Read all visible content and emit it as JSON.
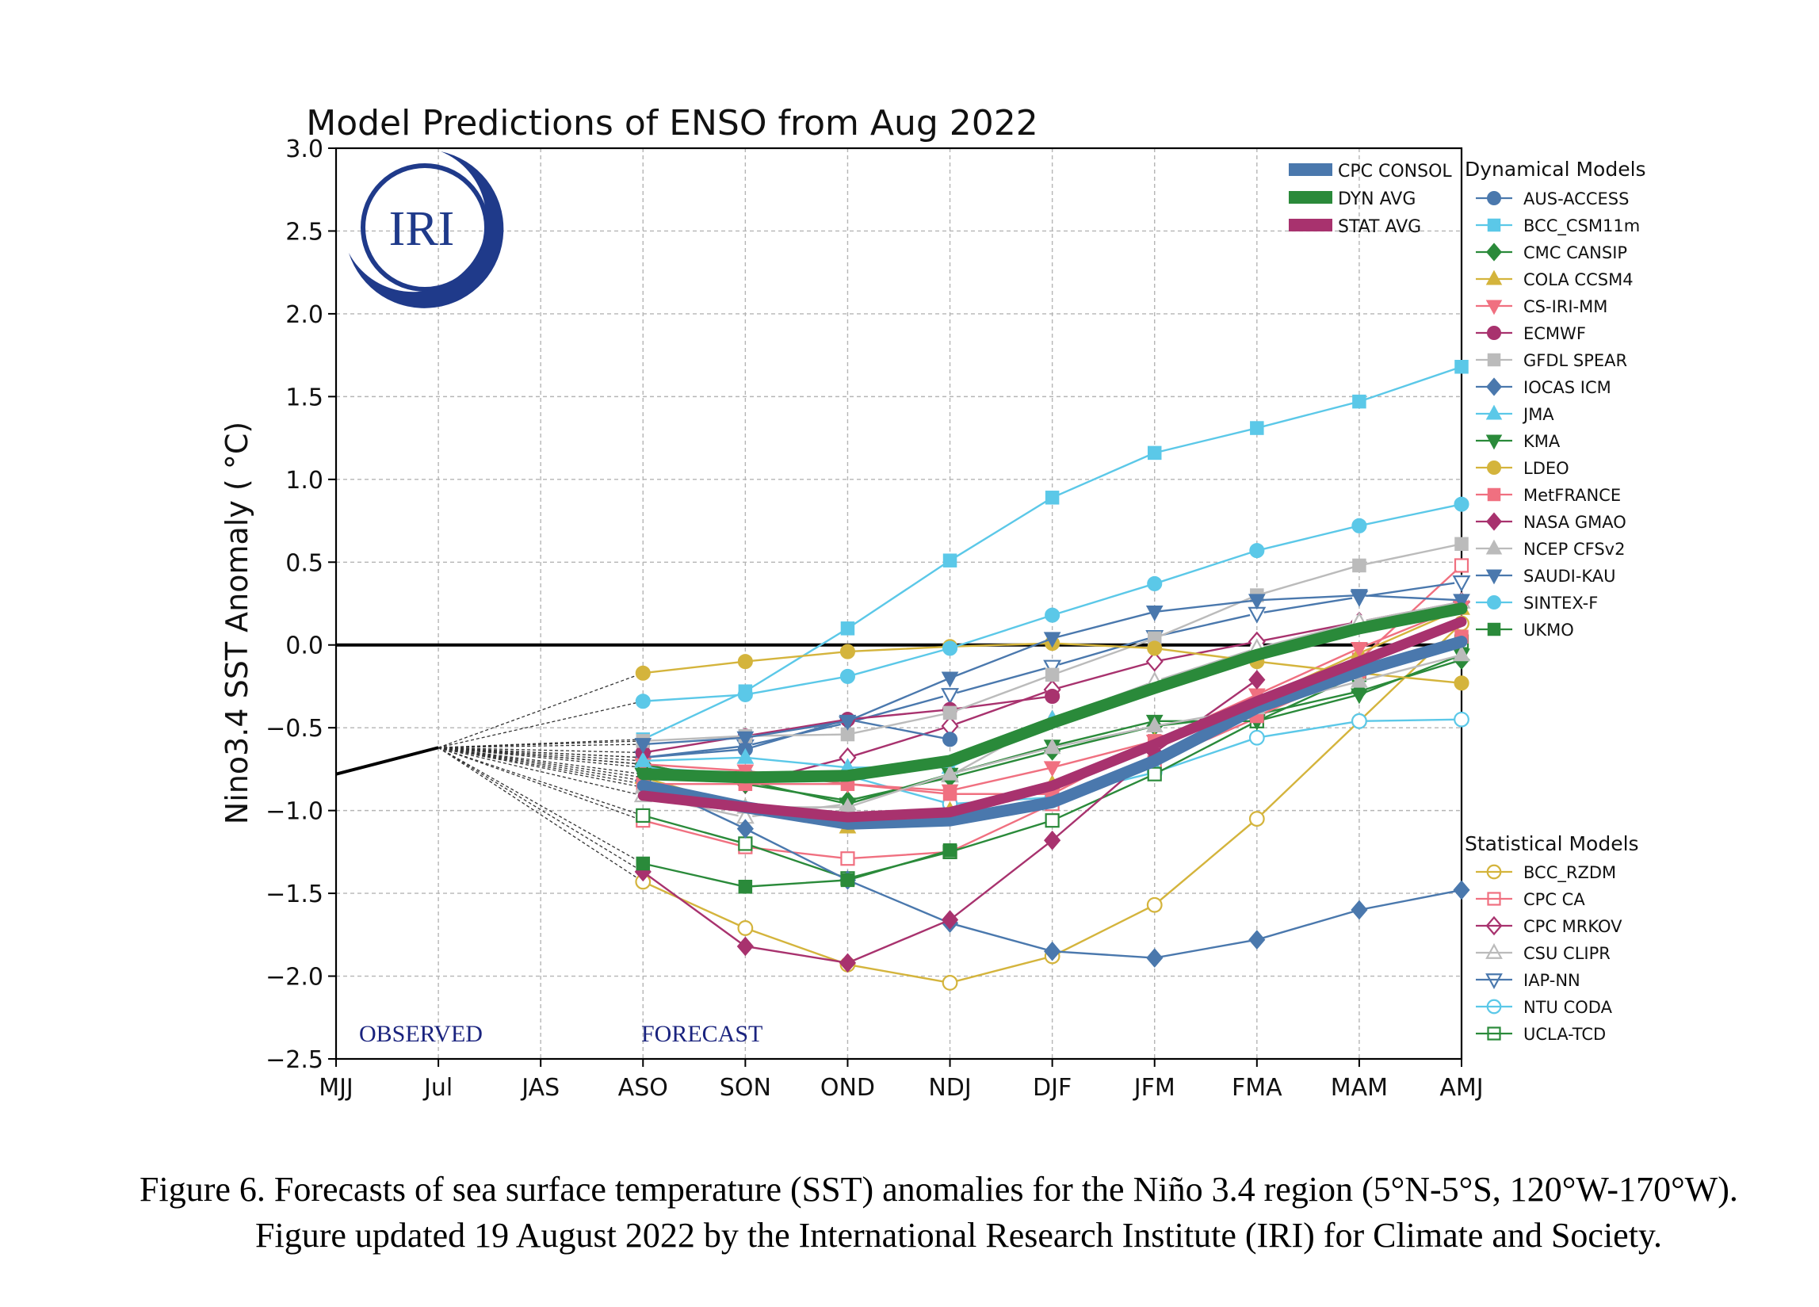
{
  "caption": "Figure 6. Forecasts of sea surface temperature (SST) anomalies for the Niño 3.4 region (5°N-5°S, 120°W-170°W). Figure updated 19 August 2022 by the International Research Institute (IRI) for Climate and Society.",
  "logo": {
    "text": "IRI",
    "color": "#1f3a8a"
  },
  "chart_data": {
    "type": "line",
    "title": "Model Predictions of ENSO from Aug 2022",
    "ylabel": "Nino3.4 SST Anomaly ($^\\circ$C)",
    "ylabel_display": "Nino3.4 SST Anomaly ( °C)",
    "xlabel": "",
    "categories": [
      "MJJ",
      "Jul",
      "JAS",
      "ASO",
      "SON",
      "OND",
      "NDJ",
      "DJF",
      "JFM",
      "FMA",
      "MAM",
      "AMJ"
    ],
    "ylim": [
      -2.5,
      3.0
    ],
    "yticks": [
      "3.0",
      "2.5",
      "2.0",
      "1.5",
      "1.0",
      "0.5",
      "0.0",
      "−0.5",
      "−1.0",
      "−1.5",
      "−2.0",
      "−2.5"
    ],
    "grid": true,
    "observed_label": "OBSERVED",
    "forecast_label": "FORECAST",
    "observed": {
      "x": [
        0,
        1
      ],
      "values": [
        -0.78,
        -0.62
      ],
      "color": "#000000"
    },
    "zero_line": 0.0,
    "legend_consol_placement": "top-right",
    "legend_dynamical_title": "Dynamical Models",
    "legend_statistical_title": "Statistical Models",
    "consol": [
      {
        "name": "CPC CONSOL",
        "color": "#4a78ad",
        "values": [
          -0.85,
          -0.98,
          -1.08,
          -1.06,
          -0.95,
          -0.7,
          -0.38,
          -0.16,
          0.02
        ]
      },
      {
        "name": "DYN AVG",
        "color": "#2a8a3a",
        "values": [
          -0.78,
          -0.8,
          -0.79,
          -0.7,
          -0.47,
          -0.26,
          -0.06,
          0.1,
          0.22
        ]
      },
      {
        "name": "STAT AVG",
        "color": "#a8326e",
        "values": [
          -0.91,
          -0.98,
          -1.04,
          -1.01,
          -0.85,
          -0.6,
          -0.34,
          -0.1,
          0.14
        ]
      }
    ],
    "dynamical": [
      {
        "name": "AUS-ACCESS",
        "color": "#4a78ad",
        "marker": "circle",
        "filled": true,
        "values": [
          -0.68,
          -0.63,
          -0.45,
          -0.57
        ]
      },
      {
        "name": "BCC_CSM11m",
        "color": "#5bc8e8",
        "marker": "square",
        "filled": true,
        "values": [
          -0.57,
          -0.28,
          0.1,
          0.51,
          0.89,
          1.16,
          1.31,
          1.47,
          1.68
        ]
      },
      {
        "name": "CMC CANSIP",
        "color": "#2a8a3a",
        "marker": "diamond",
        "filled": true,
        "values": [
          -0.72,
          -0.84,
          -0.94,
          -0.8,
          -0.64,
          -0.49,
          -0.42,
          -0.28,
          -0.09
        ]
      },
      {
        "name": "COLA CCSM4",
        "color": "#d4b43c",
        "marker": "triangle-up",
        "filled": true,
        "values": [
          -0.8,
          -0.98,
          -1.1,
          -1.0,
          -0.84,
          -0.58,
          -0.33,
          -0.05,
          0.22
        ]
      },
      {
        "name": "CS-IRI-MM",
        "color": "#f07080",
        "marker": "triangle-down",
        "filled": true,
        "values": [
          -0.72,
          -0.76,
          -0.84,
          -0.88,
          -0.74,
          -0.58,
          -0.3,
          -0.02,
          0.23
        ]
      },
      {
        "name": "ECMWF",
        "color": "#a8326e",
        "marker": "circle",
        "filled": true,
        "values": [
          -0.65,
          -0.55,
          -0.45,
          -0.39,
          -0.31
        ]
      },
      {
        "name": "GFDL SPEAR",
        "color": "#bbbbbb",
        "marker": "square",
        "filled": true,
        "values": [
          -0.58,
          -0.55,
          -0.54,
          -0.41,
          -0.18,
          0.04,
          0.3,
          0.48,
          0.61
        ]
      },
      {
        "name": "IOCAS ICM",
        "color": "#4a78ad",
        "marker": "diamond",
        "filled": true,
        "values": [
          -0.82,
          -1.11,
          -1.42,
          -1.68,
          -1.85,
          -1.89,
          -1.78,
          -1.6,
          -1.48
        ]
      },
      {
        "name": "JMA",
        "color": "#5bc8e8",
        "marker": "triangle-up",
        "filled": true,
        "values": [
          -0.7,
          -0.68,
          -0.74,
          -0.74,
          -0.45
        ]
      },
      {
        "name": "KMA",
        "color": "#2a8a3a",
        "marker": "triangle-down",
        "filled": true,
        "values": [
          -0.78,
          -0.82,
          -0.96,
          -0.78,
          -0.61,
          -0.46,
          -0.46,
          -0.3,
          -0.06
        ]
      },
      {
        "name": "LDEO",
        "color": "#d4b43c",
        "marker": "circle",
        "filled": true,
        "values": [
          -0.17,
          -0.1,
          -0.04,
          -0.01,
          0.01,
          -0.02,
          -0.1,
          -0.17,
          -0.23
        ]
      },
      {
        "name": "MetFRANCE",
        "color": "#f07080",
        "marker": "square",
        "filled": true,
        "values": [
          -0.84,
          -0.84,
          -0.84,
          -0.9,
          -0.9,
          -0.58,
          -0.43,
          -0.16,
          0.05
        ]
      },
      {
        "name": "NASA GMAO",
        "color": "#a8326e",
        "marker": "diamond",
        "filled": true,
        "values": [
          -1.37,
          -1.82,
          -1.92,
          -1.66,
          -1.18,
          -0.65,
          -0.21
        ]
      },
      {
        "name": "NCEP CFSv2",
        "color": "#bbbbbb",
        "marker": "triangle-up",
        "filled": true,
        "values": [
          -0.86,
          -0.98,
          -0.98,
          -0.78,
          -0.62,
          -0.49,
          -0.38,
          -0.22,
          -0.06
        ]
      },
      {
        "name": "SAUDI-KAU",
        "color": "#4a78ad",
        "marker": "triangle-down",
        "filled": true,
        "values": [
          -0.6,
          -0.56,
          -0.46,
          -0.2,
          0.04,
          0.2,
          0.27,
          0.3,
          0.27
        ]
      },
      {
        "name": "SINTEX-F",
        "color": "#5bc8e8",
        "marker": "circle",
        "filled": true,
        "values": [
          -0.34,
          -0.3,
          -0.19,
          -0.02,
          0.18,
          0.37,
          0.57,
          0.72,
          0.85
        ]
      },
      {
        "name": "UKMO",
        "color": "#2a8a3a",
        "marker": "square",
        "filled": true,
        "values": [
          -1.32,
          -1.46,
          -1.42,
          -1.24
        ]
      }
    ],
    "statistical": [
      {
        "name": "BCC_RZDM",
        "color": "#d4b43c",
        "marker": "circle",
        "filled": false,
        "values": [
          -1.43,
          -1.71,
          -1.93,
          -2.04,
          -1.88,
          -1.57,
          -1.05,
          -0.46,
          0.13
        ]
      },
      {
        "name": "CPC CA",
        "color": "#f07080",
        "marker": "square",
        "filled": false,
        "values": [
          -1.06,
          -1.22,
          -1.29,
          -1.25,
          -0.96,
          -0.71,
          -0.44,
          -0.09,
          0.48
        ]
      },
      {
        "name": "CPC MRKOV",
        "color": "#a8326e",
        "marker": "diamond",
        "filled": false,
        "values": [
          -0.72,
          -0.84,
          -0.68,
          -0.49,
          -0.27,
          -0.1,
          0.02,
          0.14,
          0.26
        ]
      },
      {
        "name": "CSU CLIPR",
        "color": "#bbbbbb",
        "marker": "triangle-up",
        "filled": false,
        "values": [
          -0.91,
          -1.04,
          -0.96,
          -0.79,
          -0.45,
          -0.22,
          -0.02,
          0.14,
          0.26
        ]
      },
      {
        "name": "IAP-NN",
        "color": "#4a78ad",
        "marker": "triangle-down",
        "filled": false,
        "values": [
          -0.68,
          -0.61,
          -0.47,
          -0.3,
          -0.13,
          0.05,
          0.19,
          0.29,
          0.38
        ]
      },
      {
        "name": "NTU CODA",
        "color": "#5bc8e8",
        "marker": "circle",
        "filled": false,
        "values": [
          -0.74,
          -0.78,
          -0.79,
          -0.96,
          -0.92,
          -0.77,
          -0.56,
          -0.46,
          -0.45
        ]
      },
      {
        "name": "UCLA-TCD",
        "color": "#2a8a3a",
        "marker": "square",
        "filled": false,
        "values": [
          -1.03,
          -1.2,
          -1.41,
          -1.25,
          -1.06,
          -0.78,
          -0.46,
          -0.18,
          0.02
        ]
      }
    ]
  }
}
